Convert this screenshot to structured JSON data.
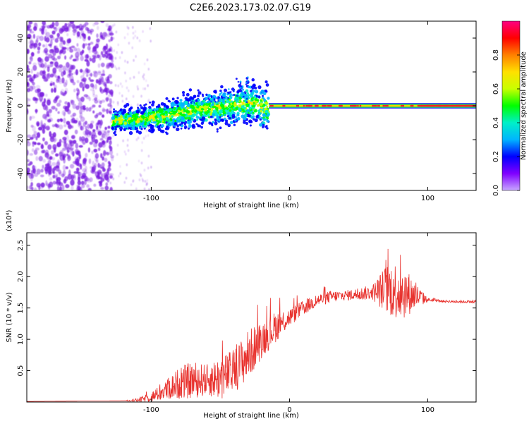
{
  "title": "C2E6.2023.173.02.07.G19",
  "colors": {
    "snr_line": "#e8322e",
    "spectrogram_scatter": "#7a1fe0",
    "spectrogram_band": "#00e060",
    "spectrogram_peak": "#ff2020"
  },
  "chart_data": [
    {
      "type": "heatmap",
      "title": "C2E6.2023.173.02.07.G19",
      "xlabel": "Height of straight line (km)",
      "ylabel": "Frequency (Hz)",
      "xlim": [
        -190,
        135
      ],
      "ylim": [
        -50,
        50
      ],
      "xticks": [
        -100,
        0,
        100
      ],
      "yticks": [
        -40,
        -20,
        0,
        20,
        40
      ],
      "colorbar": {
        "label": "Normalized spectral amplitude",
        "range": [
          0,
          1
        ],
        "ticks": [
          "0.0",
          "0.2",
          "0.4",
          "0.6",
          "0.8"
        ],
        "stops": [
          "#c8a8ff",
          "#8000ff",
          "#0000ff",
          "#00b4ff",
          "#00f0c8",
          "#00ff00",
          "#c8ff00",
          "#ffe000",
          "#ff8000",
          "#ff0000",
          "#ff0080"
        ]
      },
      "ridge": {
        "x": [
          -128,
          -110,
          -90,
          -70,
          -50,
          -35,
          -25,
          -18,
          -12,
          0,
          30,
          60,
          90,
          135
        ],
        "y": [
          -9,
          -8,
          -6,
          -3,
          -1,
          1,
          1,
          -2,
          0,
          0,
          0,
          0,
          0,
          0
        ]
      },
      "regions": [
        {
          "name": "noise",
          "x": [
            -190,
            -128
          ],
          "amplitude": 0.1
        },
        {
          "name": "scattered",
          "x": [
            -128,
            -15
          ],
          "amplitude": 0.4
        },
        {
          "name": "steady",
          "x": [
            -15,
            135
          ],
          "amplitude": 0.9
        }
      ]
    },
    {
      "type": "line",
      "xlabel": "Height of straight line (km)",
      "ylabel": "SNR (10 * v/v)",
      "y_multiplier": "(x10⁴)",
      "xlim": [
        -190,
        135
      ],
      "ylim": [
        0,
        2.7
      ],
      "xticks": [
        -100,
        0,
        100
      ],
      "yticks": [
        "0.5",
        "1.0",
        "1.5",
        "2.0",
        "2.5"
      ],
      "series": [
        {
          "x": [
            -190,
            -120,
            -110,
            -100,
            -90,
            -80,
            -70,
            -60,
            -50,
            -40,
            -30,
            -20,
            -10,
            0,
            10,
            20,
            30,
            40,
            50,
            60,
            70,
            80,
            90,
            100,
            110,
            120,
            135
          ],
          "values": [
            0.01,
            0.02,
            0.03,
            0.08,
            0.18,
            0.3,
            0.35,
            0.35,
            0.38,
            0.5,
            0.75,
            1.0,
            1.2,
            1.35,
            1.5,
            1.62,
            1.68,
            1.7,
            1.72,
            1.75,
            1.8,
            1.78,
            1.7,
            1.63,
            1.61,
            1.6,
            1.6
          ],
          "spread": [
            0,
            0,
            0.03,
            0.08,
            0.15,
            0.25,
            0.3,
            0.25,
            0.35,
            0.35,
            0.4,
            0.3,
            0.25,
            0.15,
            0.12,
            0.1,
            0.1,
            0.08,
            0.1,
            0.12,
            0.4,
            0.5,
            0.25,
            0.03,
            0.02,
            0.02,
            0.02
          ]
        }
      ]
    }
  ]
}
